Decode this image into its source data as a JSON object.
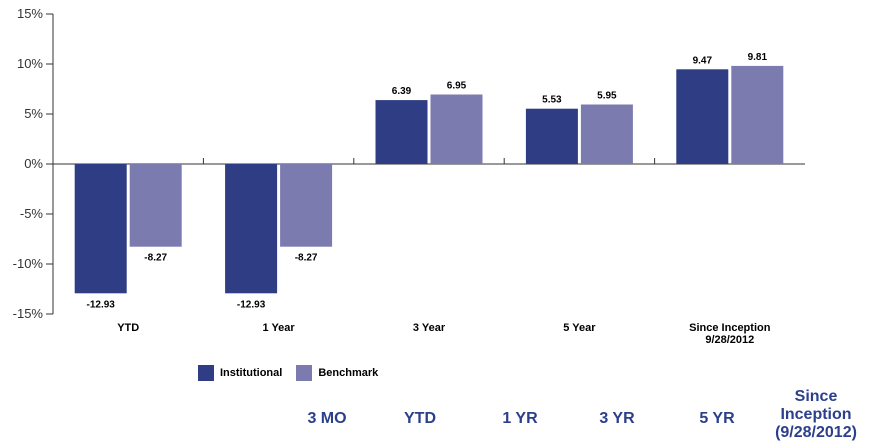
{
  "chart_data": {
    "type": "bar",
    "categories": [
      "YTD",
      "1 Year",
      "3 Year",
      "5 Year",
      "Since Inception\n9/28/2012"
    ],
    "series": [
      {
        "name": "Institutional",
        "values": [
          -12.93,
          -12.93,
          6.39,
          5.53,
          9.47
        ]
      },
      {
        "name": "Benchmark",
        "values": [
          -8.27,
          -8.27,
          6.95,
          5.95,
          9.81
        ]
      }
    ],
    "value_labels": [
      [
        "-12.93",
        "-12.93",
        "6.39",
        "5.53",
        "9.47"
      ],
      [
        "-8.27",
        "-8.27",
        "6.95",
        "5.95",
        "9.81"
      ]
    ],
    "ylim": [
      -15,
      15
    ],
    "yticks": [
      "15%",
      "10%",
      "5%",
      "0%",
      "-5%",
      "-10%",
      "-15%"
    ],
    "ytick_values": [
      15,
      10,
      5,
      0,
      -5,
      -10,
      -15
    ],
    "legend_placement": "bottom-left",
    "grid": false
  },
  "colors": {
    "institutional": "#2e3d84",
    "benchmark": "#7c7bb0",
    "axis": "#333333",
    "header_text": "#2b3f8a"
  },
  "legend": {
    "institutional": "Institutional",
    "benchmark": "Benchmark"
  },
  "table_header": {
    "col1": "3 MO",
    "col2": "YTD",
    "col3": "1 YR",
    "col4": "3 YR",
    "col5": "5 YR",
    "col6_line1": "Since",
    "col6_line2": "Inception",
    "col6_line3": "(9/28/2012)"
  }
}
